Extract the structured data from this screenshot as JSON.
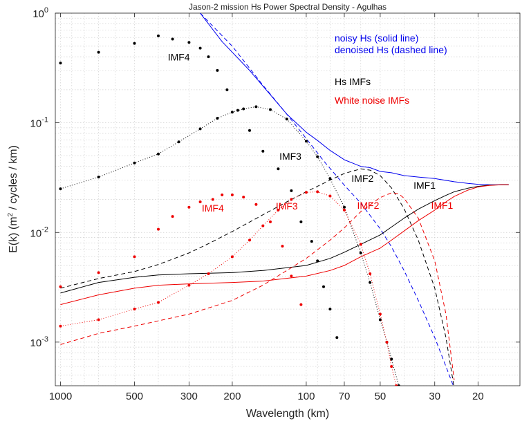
{
  "chart_data": {
    "type": "line",
    "title": "Jason-2 mission Hs Power Spectral Density - Agulhas",
    "xlabel": "Wavelength (km)",
    "ylabel": {
      "prefix": "E(k) (m",
      "sup": "2",
      "suffix": " / cycles / km)"
    },
    "x_scale": "log-reversed",
    "y_scale": "log",
    "xlim": [
      1050,
      13.5
    ],
    "ylim": [
      0.0004,
      1
    ],
    "grid": true,
    "x_ticks": [
      {
        "value": 1000,
        "label": "1000"
      },
      {
        "value": 500,
        "label": "500"
      },
      {
        "value": 300,
        "label": "300"
      },
      {
        "value": 200,
        "label": "200"
      },
      {
        "value": 100,
        "label": "100"
      },
      {
        "value": 70,
        "label": "70"
      },
      {
        "value": 50,
        "label": "50"
      },
      {
        "value": 30,
        "label": "30"
      },
      {
        "value": 20,
        "label": "20"
      }
    ],
    "y_ticks": [
      {
        "value": 0.001,
        "base": "10",
        "exp": "-3"
      },
      {
        "value": 0.01,
        "base": "10",
        "exp": "-2"
      },
      {
        "value": 0.1,
        "base": "10",
        "exp": "-1"
      },
      {
        "value": 1,
        "base": "10",
        "exp": "0"
      }
    ],
    "legend": [
      {
        "text": "noisy Hs (solid line)",
        "color": "#0000ee"
      },
      {
        "text": "denoised Hs (dashed line)",
        "color": "#0000ee"
      },
      {
        "text": "Hs  IMFs",
        "color": "#000000"
      },
      {
        "text": "White noise IMFs",
        "color": "#ee0000"
      }
    ],
    "annotations": [
      {
        "text": "IMF4",
        "x": 330,
        "y": 0.37,
        "color": "#000000"
      },
      {
        "text": "IMF3",
        "x": 116,
        "y": 0.046,
        "color": "#000000"
      },
      {
        "text": "IMF2",
        "x": 59,
        "y": 0.029,
        "color": "#000000"
      },
      {
        "text": "IMF1",
        "x": 33,
        "y": 0.025,
        "color": "#000000"
      },
      {
        "text": "IMF4",
        "x": 240,
        "y": 0.0155,
        "color": "#ee0000"
      },
      {
        "text": "IMF3",
        "x": 120,
        "y": 0.0162,
        "color": "#ee0000"
      },
      {
        "text": "IMF2",
        "x": 56,
        "y": 0.0165,
        "color": "#ee0000"
      },
      {
        "text": "IMF1",
        "x": 28,
        "y": 0.0165,
        "color": "#ee0000"
      }
    ],
    "series": [
      {
        "id": "noisy-hs",
        "color": "#0000ee",
        "style": "solid",
        "x": [
          270,
          220,
          170,
          140,
          120,
          100,
          90,
          80,
          70,
          60,
          55,
          50,
          45,
          40,
          35,
          30,
          25,
          22,
          20,
          18,
          16,
          15
        ],
        "y": [
          1.0,
          0.55,
          0.3,
          0.18,
          0.12,
          0.082,
          0.069,
          0.056,
          0.046,
          0.04,
          0.039,
          0.036,
          0.035,
          0.033,
          0.032,
          0.031,
          0.029,
          0.028,
          0.0275,
          0.0272,
          0.0272,
          0.0272
        ]
      },
      {
        "id": "denoised-hs",
        "color": "#0000ee",
        "style": "dashed",
        "x": [
          270,
          200,
          150,
          120,
          100,
          85,
          70,
          60,
          50,
          45,
          40,
          35,
          30,
          27,
          25
        ],
        "y": [
          1.0,
          0.5,
          0.22,
          0.12,
          0.072,
          0.045,
          0.027,
          0.0185,
          0.0108,
          0.0074,
          0.0045,
          0.0024,
          0.0011,
          0.0006,
          0.00038
        ]
      },
      {
        "id": "hs-imf1",
        "color": "#000000",
        "style": "solid",
        "x": [
          1000,
          700,
          500,
          400,
          300,
          200,
          150,
          100,
          80,
          70,
          60,
          50,
          45,
          40,
          35,
          30,
          27,
          25,
          22,
          20,
          18,
          16,
          15
        ],
        "y": [
          0.0028,
          0.0035,
          0.0039,
          0.0041,
          0.0042,
          0.0043,
          0.0045,
          0.005,
          0.0058,
          0.0066,
          0.0078,
          0.0095,
          0.0112,
          0.0135,
          0.0163,
          0.0195,
          0.0218,
          0.0235,
          0.0253,
          0.0263,
          0.027,
          0.0272,
          0.0272
        ]
      },
      {
        "id": "hs-imf2",
        "color": "#000000",
        "style": "dashed",
        "x": [
          1000,
          700,
          500,
          400,
          300,
          250,
          200,
          150,
          120,
          100,
          80,
          70,
          60,
          55,
          50,
          45,
          40,
          35,
          30,
          27,
          25
        ],
        "y": [
          0.0031,
          0.0038,
          0.0044,
          0.0051,
          0.0065,
          0.0079,
          0.0102,
          0.0145,
          0.019,
          0.0235,
          0.03,
          0.0345,
          0.038,
          0.037,
          0.033,
          0.0255,
          0.0165,
          0.0085,
          0.0031,
          0.0011,
          0.00038
        ]
      },
      {
        "id": "hs-imf3",
        "color": "#000000",
        "style": "dotted",
        "markers": true,
        "x": [
          1000,
          700,
          500,
          400,
          330,
          270,
          230,
          200,
          180,
          160,
          140,
          120,
          100,
          90,
          80,
          70,
          60,
          55,
          50,
          47,
          45,
          42
        ],
        "y": [
          0.025,
          0.032,
          0.043,
          0.052,
          0.067,
          0.088,
          0.11,
          0.125,
          0.134,
          0.14,
          0.132,
          0.108,
          0.068,
          0.049,
          0.031,
          0.017,
          0.0065,
          0.0035,
          0.0016,
          0.001,
          0.0007,
          0.0004
        ]
      },
      {
        "id": "hs-imf4",
        "color": "#000000",
        "style": "none",
        "markers": true,
        "x": [
          1000,
          700,
          500,
          400,
          350,
          300,
          270,
          250,
          230,
          210,
          190,
          170,
          150,
          130,
          115,
          105,
          95,
          90,
          85,
          80,
          75
        ],
        "y": [
          0.35,
          0.44,
          0.53,
          0.62,
          0.58,
          0.54,
          0.48,
          0.4,
          0.3,
          0.2,
          0.13,
          0.085,
          0.055,
          0.038,
          0.024,
          0.0125,
          0.0083,
          0.0055,
          0.0032,
          0.002,
          0.0011
        ]
      },
      {
        "id": "wn-imf1",
        "color": "#ee0000",
        "style": "solid",
        "x": [
          1000,
          700,
          500,
          400,
          300,
          200,
          150,
          100,
          80,
          70,
          60,
          50,
          45,
          40,
          35,
          30,
          27,
          25,
          22,
          20,
          18,
          16,
          15
        ],
        "y": [
          0.0022,
          0.0027,
          0.0031,
          0.0033,
          0.0034,
          0.0035,
          0.0036,
          0.004,
          0.0045,
          0.005,
          0.006,
          0.0072,
          0.0085,
          0.0103,
          0.0128,
          0.016,
          0.019,
          0.0213,
          0.0243,
          0.026,
          0.0268,
          0.0272,
          0.0272
        ]
      },
      {
        "id": "wn-imf2",
        "color": "#ee0000",
        "style": "dashed",
        "x": [
          1000,
          700,
          500,
          300,
          200,
          150,
          120,
          100,
          80,
          70,
          60,
          50,
          45,
          42,
          40,
          35,
          30,
          27,
          25
        ],
        "y": [
          0.00095,
          0.0012,
          0.0014,
          0.0018,
          0.0024,
          0.0033,
          0.0045,
          0.0058,
          0.0085,
          0.011,
          0.0155,
          0.0208,
          0.023,
          0.0225,
          0.0205,
          0.0135,
          0.0055,
          0.0018,
          0.00045
        ]
      },
      {
        "id": "wn-imf3",
        "color": "#ee0000",
        "style": "dotted",
        "markers": true,
        "x": [
          1000,
          700,
          500,
          400,
          300,
          250,
          200,
          170,
          150,
          130,
          115,
          100,
          90,
          80,
          70,
          60,
          55,
          50,
          47,
          45,
          43
        ],
        "y": [
          0.0014,
          0.0016,
          0.002,
          0.0023,
          0.0033,
          0.0042,
          0.006,
          0.0085,
          0.0115,
          0.016,
          0.02,
          0.0232,
          0.0235,
          0.0215,
          0.016,
          0.0078,
          0.0042,
          0.0018,
          0.001,
          0.0006,
          0.0004
        ]
      },
      {
        "id": "wn-imf4",
        "color": "#ee0000",
        "style": "none",
        "markers": true,
        "x": [
          1000,
          700,
          500,
          400,
          350,
          300,
          270,
          240,
          220,
          200,
          180,
          160,
          140,
          125,
          115,
          105
        ],
        "y": [
          0.0032,
          0.0043,
          0.006,
          0.0107,
          0.014,
          0.017,
          0.019,
          0.02,
          0.022,
          0.022,
          0.021,
          0.018,
          0.0125,
          0.0075,
          0.004,
          0.0022
        ]
      }
    ]
  }
}
